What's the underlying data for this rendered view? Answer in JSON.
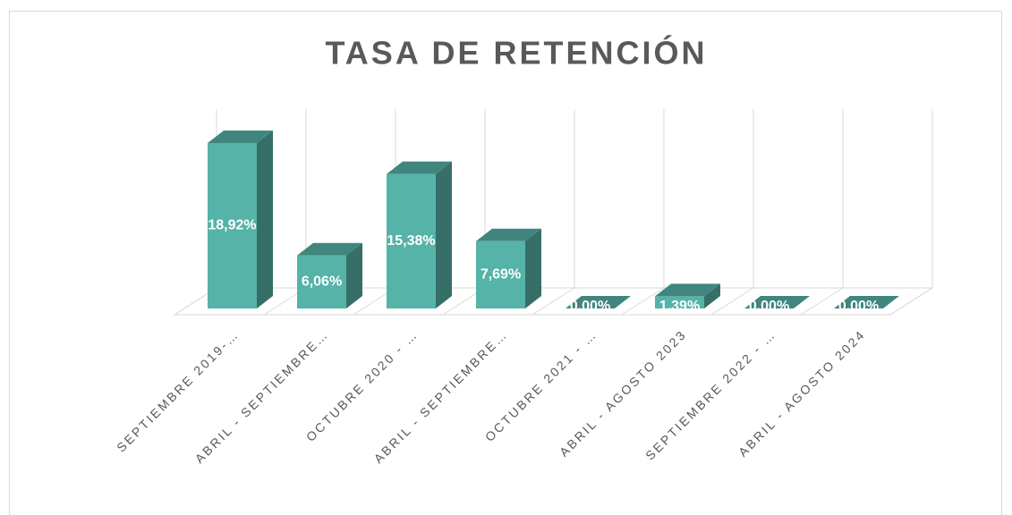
{
  "chart_data": {
    "type": "bar3d",
    "title": "TASA DE RETENCIÓN",
    "categories": [
      "SEPTIEMBRE 2019-…",
      "ABRIL - SEPTIEMBRE…",
      "OCTUBRE 2020 - …",
      "ABRIL - SEPTIEMBRE…",
      "OCTUBRE 2021 - …",
      "ABRIL - AGOSTO 2023",
      "SEPTIEMBRE 2022 - …",
      "ABRIL - AGOSTO 2024"
    ],
    "values": [
      18.92,
      6.06,
      15.38,
      7.69,
      0,
      1.39,
      0,
      0
    ],
    "value_labels": [
      "18,92%",
      "6,06%",
      "15,38%",
      "7,69%",
      "0,00%",
      "1,39%",
      "0,00%",
      "0,00%"
    ],
    "color": "#55b3a8",
    "grid": true
  }
}
